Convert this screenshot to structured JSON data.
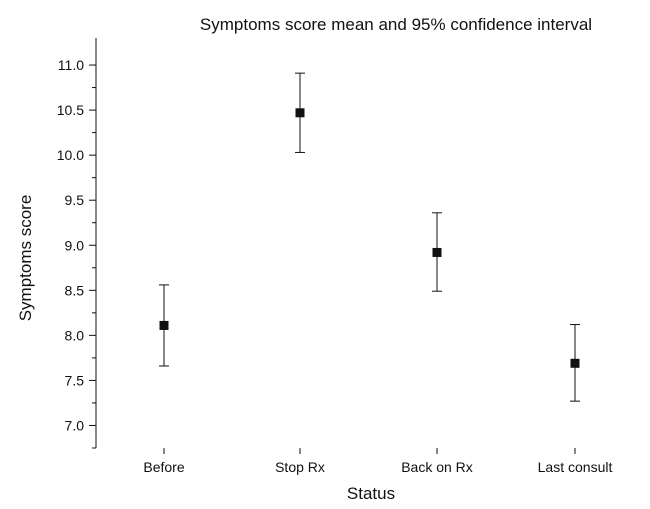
{
  "chart_data": {
    "type": "scatter",
    "title": "Symptoms score mean and 95% confidence interval",
    "xlabel": "Status",
    "ylabel": "Symptoms score",
    "categories": [
      "Before",
      "Stop Rx",
      "Back on Rx",
      "Last consult"
    ],
    "series": [
      {
        "values": [
          8.11,
          10.47,
          8.92,
          7.69
        ],
        "ci_lower": [
          7.66,
          10.03,
          8.49,
          7.27
        ],
        "ci_upper": [
          8.56,
          10.91,
          9.36,
          8.12
        ]
      }
    ],
    "ylim": [
      6.75,
      11.3
    ],
    "yticks": [
      "7.0",
      "7.5",
      "8.0",
      "8.5",
      "9.0",
      "9.5",
      "10.0",
      "10.5",
      "11.0"
    ],
    "grid": false,
    "legend": "none",
    "marker": "square",
    "color": "#111111"
  }
}
